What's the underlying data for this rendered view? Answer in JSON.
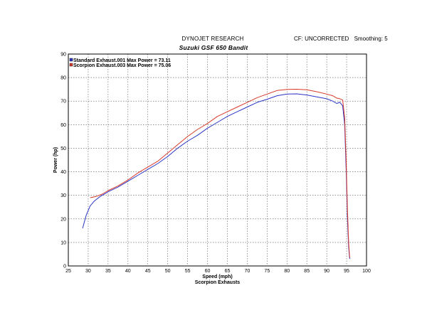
{
  "header": {
    "title": "DYNOJET RESEARCH",
    "subtitle": "Suzuki GSF 650 Bandit",
    "cf_label": "CF: UNCORRECTED",
    "smoothing_label": "Smoothing: 5"
  },
  "chart_data": {
    "type": "line",
    "xlabel": "Speed (mph)",
    "ylabel": "Power (hp)",
    "caption": "Scorpion Exhausts",
    "xlim": [
      25,
      100
    ],
    "ylim": [
      0,
      90
    ],
    "x_ticks": [
      25,
      30,
      35,
      40,
      45,
      50,
      55,
      60,
      65,
      70,
      75,
      80,
      85,
      90,
      95,
      100
    ],
    "y_ticks": [
      0,
      10,
      20,
      30,
      40,
      50,
      60,
      70,
      80,
      90
    ],
    "grid": true,
    "legend_position": "top-left",
    "series": [
      {
        "name": "Standard Exhaust.001 Max Power = 73.11",
        "color": "#2b35c6",
        "x": [
          28.6,
          29.5,
          30.5,
          31.5,
          33,
          35,
          37.5,
          40,
          42.5,
          45,
          47.5,
          50,
          52.5,
          55,
          57.5,
          60,
          62.5,
          65,
          67.5,
          70,
          72.5,
          75,
          77.5,
          80,
          82.5,
          85,
          87.5,
          90,
          91.5,
          92.5,
          93.3,
          94,
          94.5,
          94.9,
          95.2,
          95.5,
          95.7,
          95.8
        ],
        "y": [
          16,
          21.5,
          25.5,
          27.5,
          29.5,
          31.5,
          33.5,
          36,
          38.5,
          41,
          43.5,
          46.5,
          50,
          53,
          55.5,
          58.5,
          61,
          63.5,
          65.5,
          67.5,
          69.5,
          70.8,
          72.3,
          73,
          73.1,
          72.6,
          71.8,
          71,
          70,
          69,
          69.5,
          68,
          60,
          40,
          20,
          8,
          4,
          3
        ]
      },
      {
        "name": "Scorpion Exhaust.003 Max Power = 75.06",
        "color": "#d93a2b",
        "x": [
          30.5,
          32,
          33.5,
          35,
          37.5,
          40,
          42.5,
          45,
          47.5,
          50,
          52.5,
          55,
          57.5,
          60,
          62.5,
          65,
          67.5,
          70,
          72.5,
          75,
          77.5,
          80,
          82.5,
          85,
          87.5,
          90,
          91.5,
          92.5,
          93.3,
          94,
          94.5,
          94.9,
          95.2,
          95.5,
          95.7,
          95.8
        ],
        "y": [
          29,
          29.5,
          30.5,
          32,
          34,
          36.5,
          39.5,
          42,
          44.5,
          48,
          51.5,
          55,
          58,
          60.5,
          63.5,
          65.5,
          67.5,
          69.5,
          71.5,
          73,
          74.5,
          75,
          75.06,
          74.8,
          74,
          73,
          72.3,
          71.3,
          71,
          70.5,
          63,
          44,
          24,
          10,
          5,
          3.5
        ]
      }
    ]
  }
}
